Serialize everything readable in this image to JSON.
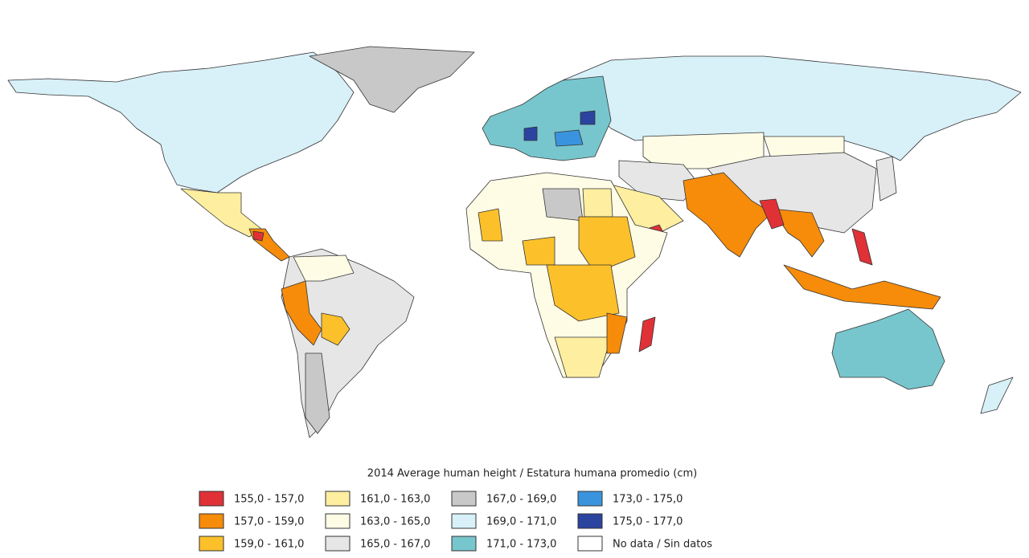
{
  "map": {
    "title": "2014 Average human height / Estatura humana promedio (cm)",
    "legend": [
      {
        "label": "155,0 - 157,0",
        "color": "#e03137"
      },
      {
        "label": "157,0 - 159,0",
        "color": "#f68c0a"
      },
      {
        "label": "159,0 - 161,0",
        "color": "#fcc12a"
      },
      {
        "label": "161,0 - 163,0",
        "color": "#fdeea0"
      },
      {
        "label": "163,0 - 165,0",
        "color": "#fffce6"
      },
      {
        "label": "165,0 - 167,0",
        "color": "#e6e6e6"
      },
      {
        "label": "167,0 - 169,0",
        "color": "#c8c8c8"
      },
      {
        "label": "169,0 - 171,0",
        "color": "#d8f0f8"
      },
      {
        "label": "171,0 - 173,0",
        "color": "#78c6cd"
      },
      {
        "label": "173,0 - 175,0",
        "color": "#3a94dd"
      },
      {
        "label": "175,0 - 177,0",
        "color": "#2b44a0"
      },
      {
        "label": "No data / Sin datos",
        "color": "#ffffff"
      }
    ]
  }
}
